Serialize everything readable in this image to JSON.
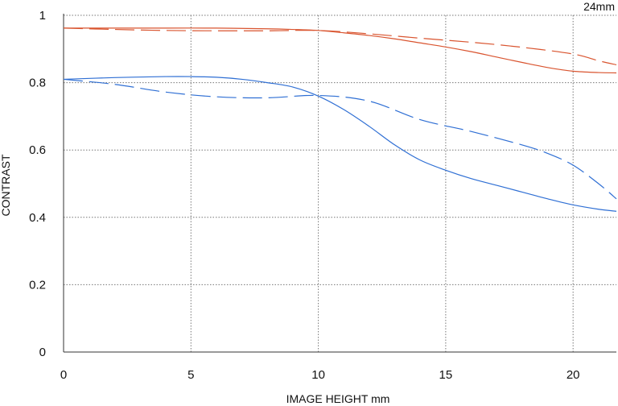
{
  "chart_data": {
    "type": "line",
    "title": "24mm",
    "xlabel": "IMAGE HEIGHT  mm",
    "ylabel": "CONTRAST",
    "xlim": [
      0,
      21.7
    ],
    "ylim": [
      0,
      1
    ],
    "xticks": [
      0,
      5,
      10,
      15,
      20
    ],
    "yticks": [
      0,
      0.2,
      0.4,
      0.6,
      0.8,
      1
    ],
    "xtick_labels": [
      "0",
      "5",
      "10",
      "15",
      "20"
    ],
    "ytick_labels": [
      "0",
      "0.2",
      "0.4",
      "0.6",
      "0.8",
      "1"
    ],
    "grid": true,
    "series": [
      {
        "color": "#d9542f",
        "dash": "solid",
        "x": [
          0,
          2,
          4,
          6,
          8,
          9,
          10,
          11,
          12,
          13,
          14,
          15,
          16,
          17,
          18,
          19,
          20,
          21,
          21.7
        ],
        "y": [
          0.962,
          0.962,
          0.962,
          0.962,
          0.96,
          0.958,
          0.955,
          0.948,
          0.94,
          0.93,
          0.918,
          0.906,
          0.892,
          0.876,
          0.86,
          0.845,
          0.834,
          0.83,
          0.829
        ]
      },
      {
        "color": "#d9542f",
        "dash": "dashed",
        "x": [
          0,
          2,
          4,
          6,
          8,
          10,
          12,
          14,
          16,
          18,
          20,
          21,
          21.7
        ],
        "y": [
          0.962,
          0.958,
          0.955,
          0.954,
          0.954,
          0.955,
          0.945,
          0.932,
          0.92,
          0.905,
          0.885,
          0.865,
          0.853
        ]
      },
      {
        "color": "#2f6fd4",
        "dash": "solid",
        "x": [
          0,
          2,
          4,
          5,
          6,
          7,
          8,
          9,
          10,
          11,
          12,
          13,
          14,
          15,
          16,
          17,
          18,
          19,
          20,
          21,
          21.7
        ],
        "y": [
          0.81,
          0.815,
          0.818,
          0.818,
          0.816,
          0.81,
          0.8,
          0.787,
          0.76,
          0.72,
          0.67,
          0.615,
          0.57,
          0.54,
          0.515,
          0.495,
          0.475,
          0.455,
          0.437,
          0.424,
          0.418
        ]
      },
      {
        "color": "#2f6fd4",
        "dash": "dashed",
        "x": [
          0,
          2,
          4,
          6,
          8,
          10,
          12,
          14,
          16,
          18,
          19,
          20,
          21,
          21.7
        ],
        "y": [
          0.81,
          0.795,
          0.772,
          0.758,
          0.755,
          0.762,
          0.745,
          0.69,
          0.655,
          0.615,
          0.59,
          0.555,
          0.5,
          0.455
        ]
      }
    ]
  }
}
